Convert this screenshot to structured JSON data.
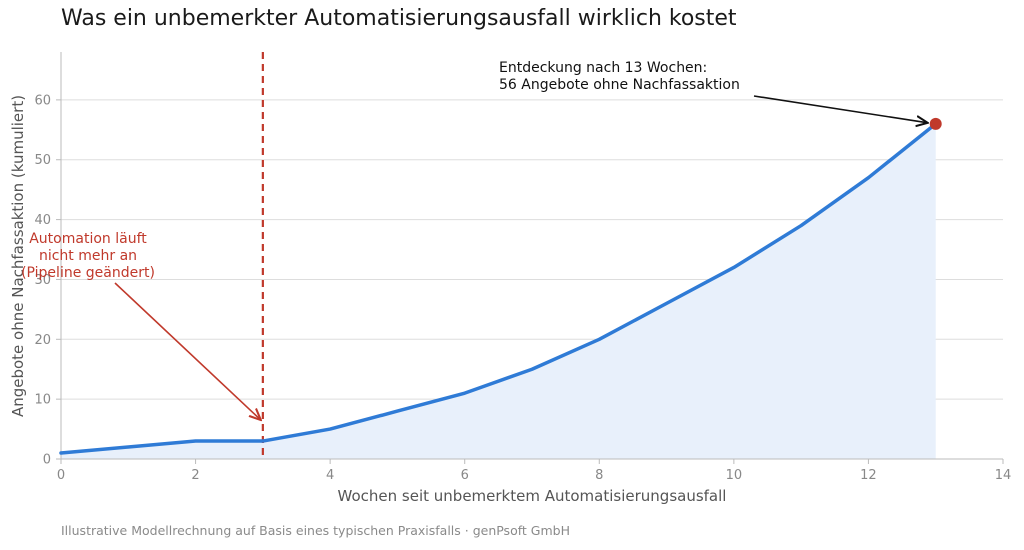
{
  "title": "Was ein unbemerkter Automatisierungsausfall wirklich kostet",
  "footer": "Illustrative Modellrechnung auf Basis eines typischen Praxisfalls · genPsoft GmbH",
  "chart_data": {
    "type": "area",
    "xlabel": "Wochen seit unbemerktem Automatisierungsausfall",
    "ylabel": "Angebote ohne Nachfassaktion (kumuliert)",
    "xlim": [
      0,
      14
    ],
    "ylim": [
      0,
      68
    ],
    "xticks": [
      0,
      2,
      4,
      6,
      8,
      10,
      12,
      14
    ],
    "yticks": [
      0,
      10,
      20,
      30,
      40,
      50,
      60
    ],
    "grid": "horizontal",
    "series": [
      {
        "x": [
          0,
          1,
          2,
          3,
          4,
          5,
          6,
          7,
          8,
          9,
          10,
          11,
          12,
          13
        ],
        "y": [
          1,
          2,
          3,
          3,
          5,
          8,
          11,
          15,
          20,
          26,
          32,
          39,
          47,
          56
        ]
      }
    ],
    "vline": {
      "x": 3
    },
    "highlight_point": {
      "x": 13,
      "y": 56
    },
    "annotations": [
      {
        "lines": [
          "Automation läuft",
          "nicht mehr an",
          "(Pipeline geändert)"
        ],
        "target_x": 3,
        "target_y": 3
      },
      {
        "lines": [
          "Entdeckung nach 13 Wochen:",
          "56 Angebote ohne Nachfassaktion"
        ],
        "target_x": 13,
        "target_y": 56
      }
    ],
    "colors": {
      "line": "#2f7bd6",
      "fill": "#e8f0fb",
      "vline": "#c0392b",
      "point": "#c0392b",
      "annotation_failure": "#c0392b",
      "annotation_discovery": "#111111",
      "grid": "#dddddd",
      "axis": "#bbbbbb",
      "tick_text": "#888888",
      "label_text": "#555555"
    }
  }
}
